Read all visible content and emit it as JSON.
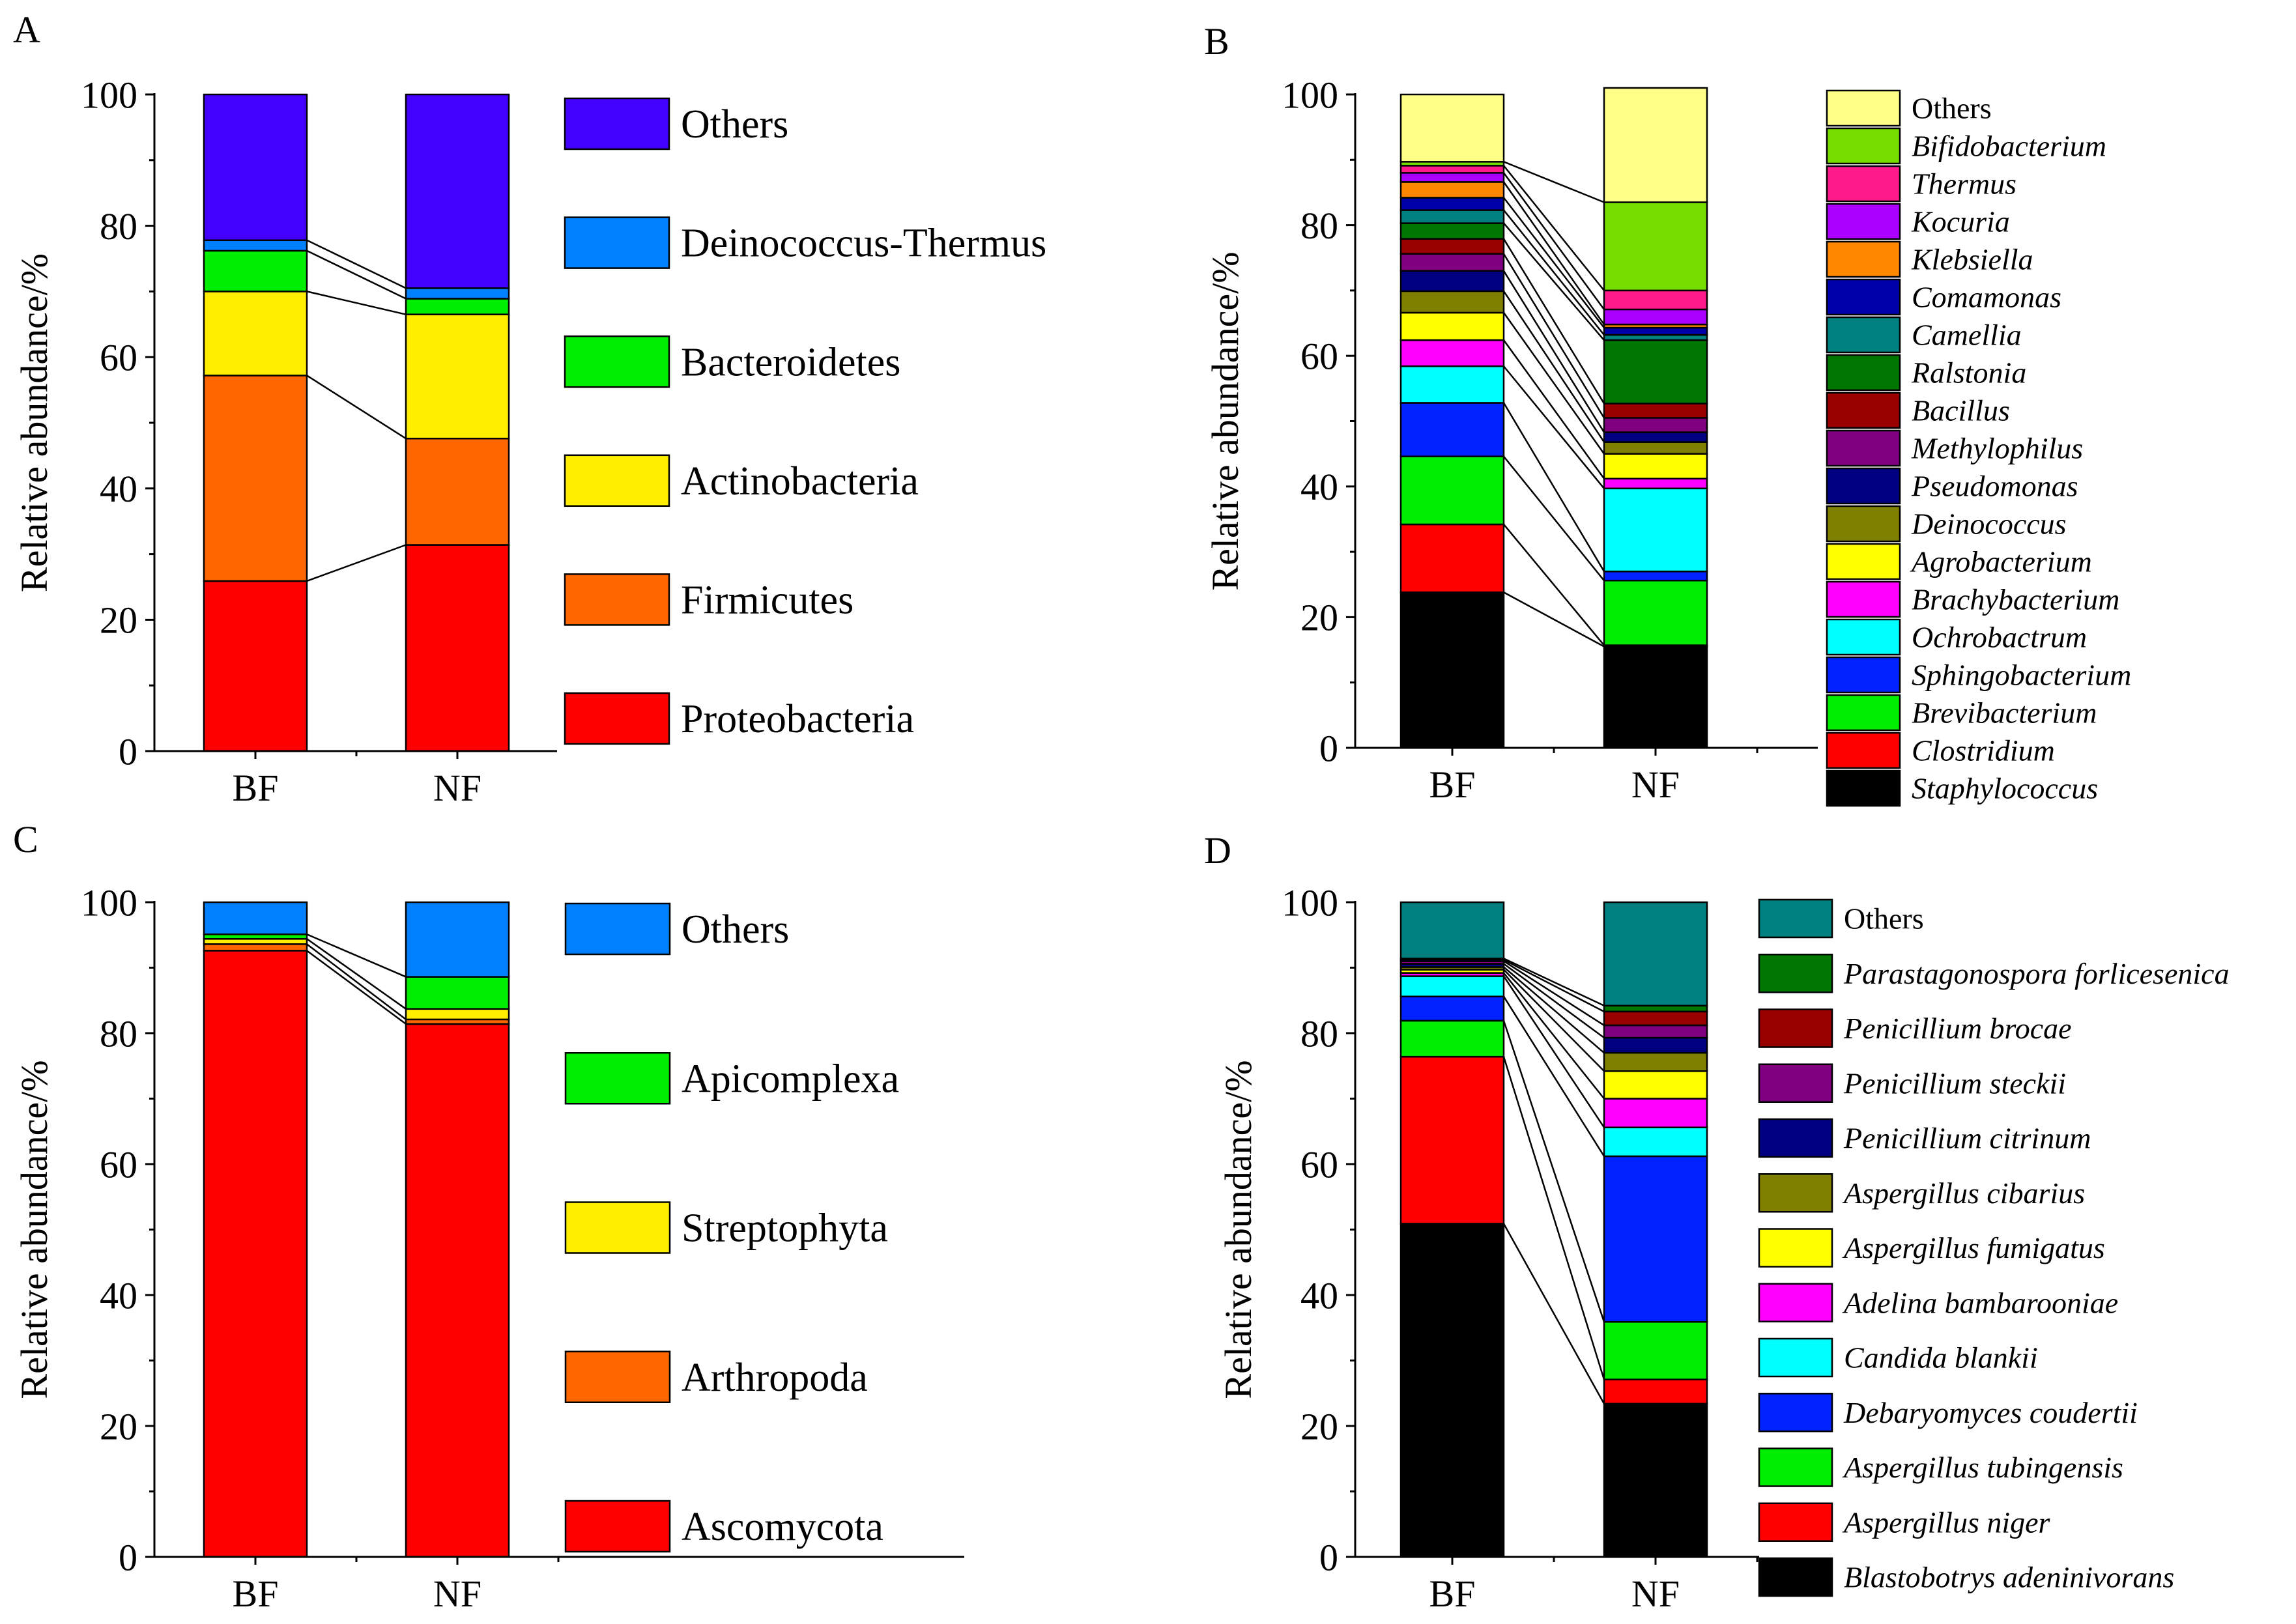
{
  "chart_data": [
    {
      "panel": "A",
      "type": "bar",
      "stacked": true,
      "categories": [
        "BF",
        "NF"
      ],
      "ylabel": "Relative abundance/%",
      "ylim": [
        0,
        100
      ],
      "yticks": [
        0,
        20,
        40,
        60,
        80,
        100
      ],
      "legend_italic": false,
      "series": [
        {
          "name": "Proteobacteria",
          "color": "#ff0000",
          "values": [
            25.9,
            31.4
          ]
        },
        {
          "name": "Firmicutes",
          "color": "#ff6600",
          "values": [
            31.3,
            16.2
          ]
        },
        {
          "name": "Actinobacteria",
          "color": "#ffee00",
          "values": [
            12.8,
            18.9
          ]
        },
        {
          "name": "Bacteroidetes",
          "color": "#00ee00",
          "values": [
            6.2,
            2.4
          ]
        },
        {
          "name": "Deinococcus-Thermus",
          "color": "#0080ff",
          "values": [
            1.6,
            1.6
          ]
        },
        {
          "name": "Others",
          "color": "#4400ff",
          "values": [
            22.2,
            29.5
          ]
        }
      ]
    },
    {
      "panel": "B",
      "type": "bar",
      "stacked": true,
      "categories": [
        "BF",
        "NF"
      ],
      "ylabel": "Relative abundance/%",
      "ylim": [
        0,
        100
      ],
      "yticks": [
        0,
        20,
        40,
        60,
        80,
        100
      ],
      "legend_italic": true,
      "series": [
        {
          "name": "Staphylococcus",
          "color": "#000000",
          "values": [
            23.8,
            15.5
          ]
        },
        {
          "name": "Clostridium",
          "color": "#ff0000",
          "values": [
            10.4,
            0.2
          ]
        },
        {
          "name": "Brevibacterium",
          "color": "#00ee00",
          "values": [
            10.4,
            9.9
          ]
        },
        {
          "name": "Sphingobacterium",
          "color": "#0022ff",
          "values": [
            8.2,
            1.4
          ]
        },
        {
          "name": "Ochrobactrum",
          "color": "#00ffff",
          "values": [
            5.6,
            12.7
          ]
        },
        {
          "name": "Brachybacterium",
          "color": "#ff00ff",
          "values": [
            4.0,
            1.5
          ]
        },
        {
          "name": "Agrobacterium",
          "color": "#ffff00",
          "values": [
            4.2,
            3.8
          ]
        },
        {
          "name": "Deinococcus",
          "color": "#808000",
          "values": [
            3.3,
            1.8
          ]
        },
        {
          "name": "Pseudomonas",
          "color": "#000080",
          "values": [
            3.1,
            1.5
          ]
        },
        {
          "name": "Methylophilus",
          "color": "#800080",
          "values": [
            2.6,
            2.2
          ]
        },
        {
          "name": "Bacillus",
          "color": "#990000",
          "values": [
            2.3,
            2.2
          ]
        },
        {
          "name": "Ralstonia",
          "color": "#007700",
          "values": [
            2.4,
            9.7
          ]
        },
        {
          "name": "Camellia",
          "color": "#008080",
          "values": [
            2.0,
            0.8
          ]
        },
        {
          "name": "Comamonas",
          "color": "#0000aa",
          "values": [
            1.9,
            1.1
          ]
        },
        {
          "name": "Klebsiella",
          "color": "#ff8800",
          "values": [
            2.4,
            0.5
          ]
        },
        {
          "name": "Kocuria",
          "color": "#aa00ff",
          "values": [
            1.4,
            2.3
          ]
        },
        {
          "name": "Thermus",
          "color": "#ff1a8c",
          "values": [
            1.1,
            2.9
          ]
        },
        {
          "name": "Bifidobacterium",
          "color": "#77dd00",
          "values": [
            0.6,
            13.5
          ]
        },
        {
          "name": "Others",
          "color": "#ffff88",
          "values": [
            10.3,
            17.5
          ]
        }
      ]
    },
    {
      "panel": "C",
      "type": "bar",
      "stacked": true,
      "categories": [
        "BF",
        "NF"
      ],
      "ylabel": "Relative abundance/%",
      "ylim": [
        0,
        100
      ],
      "yticks": [
        0,
        20,
        40,
        60,
        80,
        100
      ],
      "legend_italic": false,
      "series": [
        {
          "name": "Ascomycota",
          "color": "#ff0000",
          "values": [
            92.6,
            81.4
          ]
        },
        {
          "name": "Arthropoda",
          "color": "#ff6600",
          "values": [
            1.0,
            0.7
          ]
        },
        {
          "name": "Streptophyta",
          "color": "#ffee00",
          "values": [
            0.8,
            1.6
          ]
        },
        {
          "name": "Apicomplexa",
          "color": "#00ee00",
          "values": [
            0.7,
            4.9
          ]
        },
        {
          "name": "Others",
          "color": "#0080ff",
          "values": [
            4.9,
            11.4
          ]
        }
      ]
    },
    {
      "panel": "D",
      "type": "bar",
      "stacked": true,
      "categories": [
        "BF",
        "NF"
      ],
      "ylabel": "Relative abundance/%",
      "ylim": [
        0,
        100
      ],
      "yticks": [
        0,
        20,
        40,
        60,
        80,
        100
      ],
      "legend_italic": true,
      "series": [
        {
          "name": "Blastobotrys adeninivorans",
          "color": "#000000",
          "values": [
            50.9,
            23.4
          ]
        },
        {
          "name": "Aspergillus niger",
          "color": "#ff0000",
          "values": [
            25.5,
            3.7
          ]
        },
        {
          "name": "Aspergillus tubingensis",
          "color": "#00ee00",
          "values": [
            5.5,
            8.8
          ]
        },
        {
          "name": "Debaryomyces coudertii",
          "color": "#0022ff",
          "values": [
            3.7,
            25.3
          ]
        },
        {
          "name": "Candida blankii",
          "color": "#00ffff",
          "values": [
            3.1,
            4.4
          ]
        },
        {
          "name": "Adelina bambarooniae",
          "color": "#ff00ff",
          "values": [
            0.5,
            4.4
          ]
        },
        {
          "name": "Aspergillus fumigatus",
          "color": "#ffff00",
          "values": [
            0.5,
            4.2
          ]
        },
        {
          "name": "Aspergillus cibarius",
          "color": "#808000",
          "values": [
            0.4,
            2.8
          ]
        },
        {
          "name": "Penicillium citrinum",
          "color": "#000080",
          "values": [
            0.5,
            2.3
          ]
        },
        {
          "name": "Penicillium steckii",
          "color": "#800080",
          "values": [
            0.4,
            1.9
          ]
        },
        {
          "name": "Penicillium brocae",
          "color": "#990000",
          "values": [
            0.2,
            2.1
          ]
        },
        {
          "name": "Parastagonospora forlicesenica",
          "color": "#007700",
          "values": [
            0.2,
            0.9
          ]
        },
        {
          "name": "Others",
          "color": "#008080",
          "values": [
            8.6,
            15.8
          ]
        }
      ]
    }
  ]
}
